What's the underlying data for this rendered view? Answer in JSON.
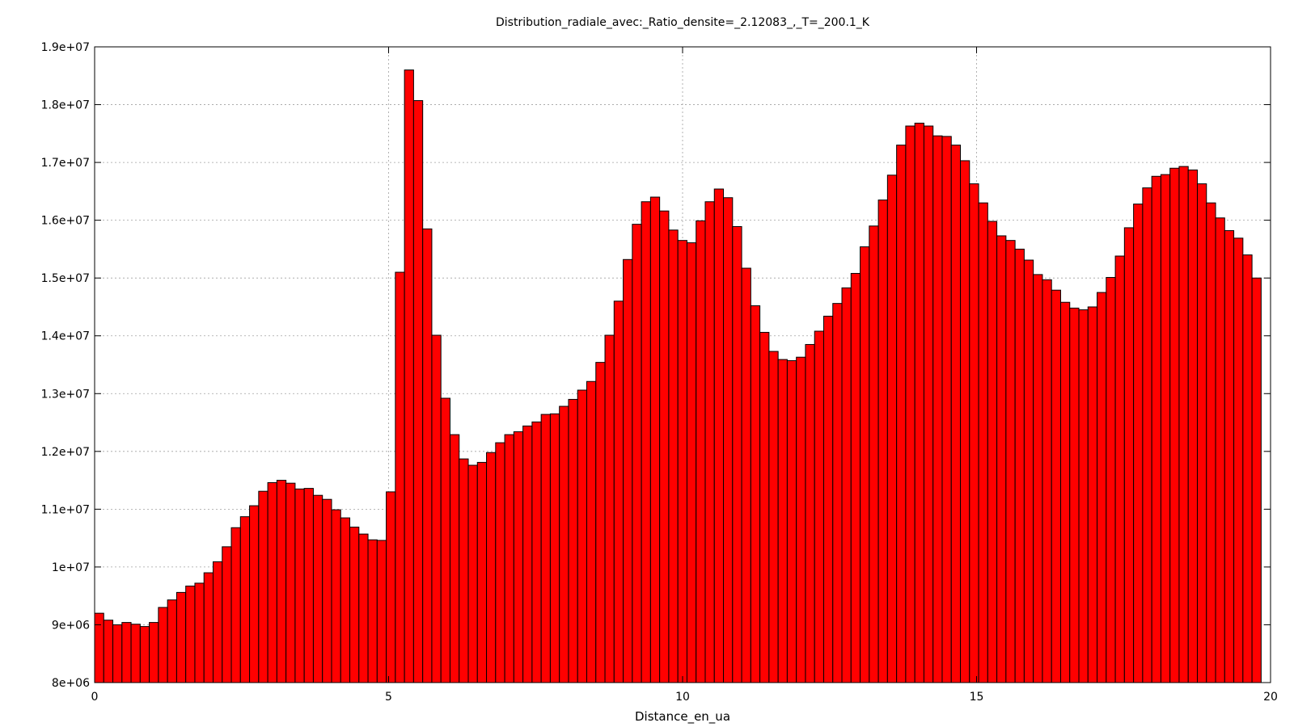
{
  "chart_data": {
    "type": "bar",
    "title": "Distribution_radiale_avec:_Ratio_densite=_2.12083_,_T=_200.1_K",
    "xlabel": "Distance_en_ua",
    "ylabel": "",
    "xlim": [
      0,
      20
    ],
    "ylim": [
      8000000,
      19000000
    ],
    "grid": true,
    "legend": "none",
    "bar_color": "#ff0000",
    "bar_edge_color": "#000000",
    "bin_width": 0.155,
    "x_ticks": [
      0,
      5,
      10,
      15,
      20
    ],
    "x_tick_labels": [
      "0",
      "5",
      "10",
      "15",
      "20"
    ],
    "y_ticks": [
      8000000,
      9000000,
      10000000,
      11000000,
      12000000,
      13000000,
      14000000,
      15000000,
      16000000,
      17000000,
      18000000,
      19000000
    ],
    "y_tick_labels": [
      "8e+06",
      "9e+06",
      "1e+07",
      "1.1e+07",
      "1.2e+07",
      "1.3e+07",
      "1.4e+07",
      "1.5e+07",
      "1.6e+07",
      "1.7e+07",
      "1.8e+07",
      "1.9e+07"
    ],
    "values": [
      9200000,
      9080000,
      9000000,
      9040000,
      9010000,
      8970000,
      9040000,
      9300000,
      9430000,
      9560000,
      9670000,
      9720000,
      9900000,
      10090000,
      10350000,
      10680000,
      10870000,
      11060000,
      11310000,
      11460000,
      11500000,
      11450000,
      11350000,
      11360000,
      11240000,
      11170000,
      10990000,
      10850000,
      10690000,
      10570000,
      10470000,
      10460000,
      11300000,
      15100000,
      18600000,
      18070000,
      15850000,
      14010000,
      12920000,
      12290000,
      11870000,
      11760000,
      11810000,
      11980000,
      12150000,
      12290000,
      12340000,
      12440000,
      12510000,
      12640000,
      12650000,
      12780000,
      12900000,
      13060000,
      13210000,
      13540000,
      14010000,
      14600000,
      15320000,
      15930000,
      16320000,
      16400000,
      16160000,
      15830000,
      15650000,
      15610000,
      15990000,
      16320000,
      16540000,
      16390000,
      15890000,
      15170000,
      14520000,
      14060000,
      13730000,
      13590000,
      13570000,
      13630000,
      13850000,
      14080000,
      14340000,
      14560000,
      14830000,
      15080000,
      15540000,
      15900000,
      16350000,
      16780000,
      17300000,
      17630000,
      17680000,
      17630000,
      17460000,
      17450000,
      17300000,
      17030000,
      16630000,
      16300000,
      15980000,
      15730000,
      15650000,
      15500000,
      15310000,
      15060000,
      14970000,
      14790000,
      14580000,
      14480000,
      14450000,
      14500000,
      14750000,
      15010000,
      15380000,
      15870000,
      16280000,
      16560000,
      16760000,
      16790000,
      16900000,
      16930000,
      16870000,
      16630000,
      16300000,
      16040000,
      15820000,
      15690000,
      15400000,
      15000000
    ]
  }
}
